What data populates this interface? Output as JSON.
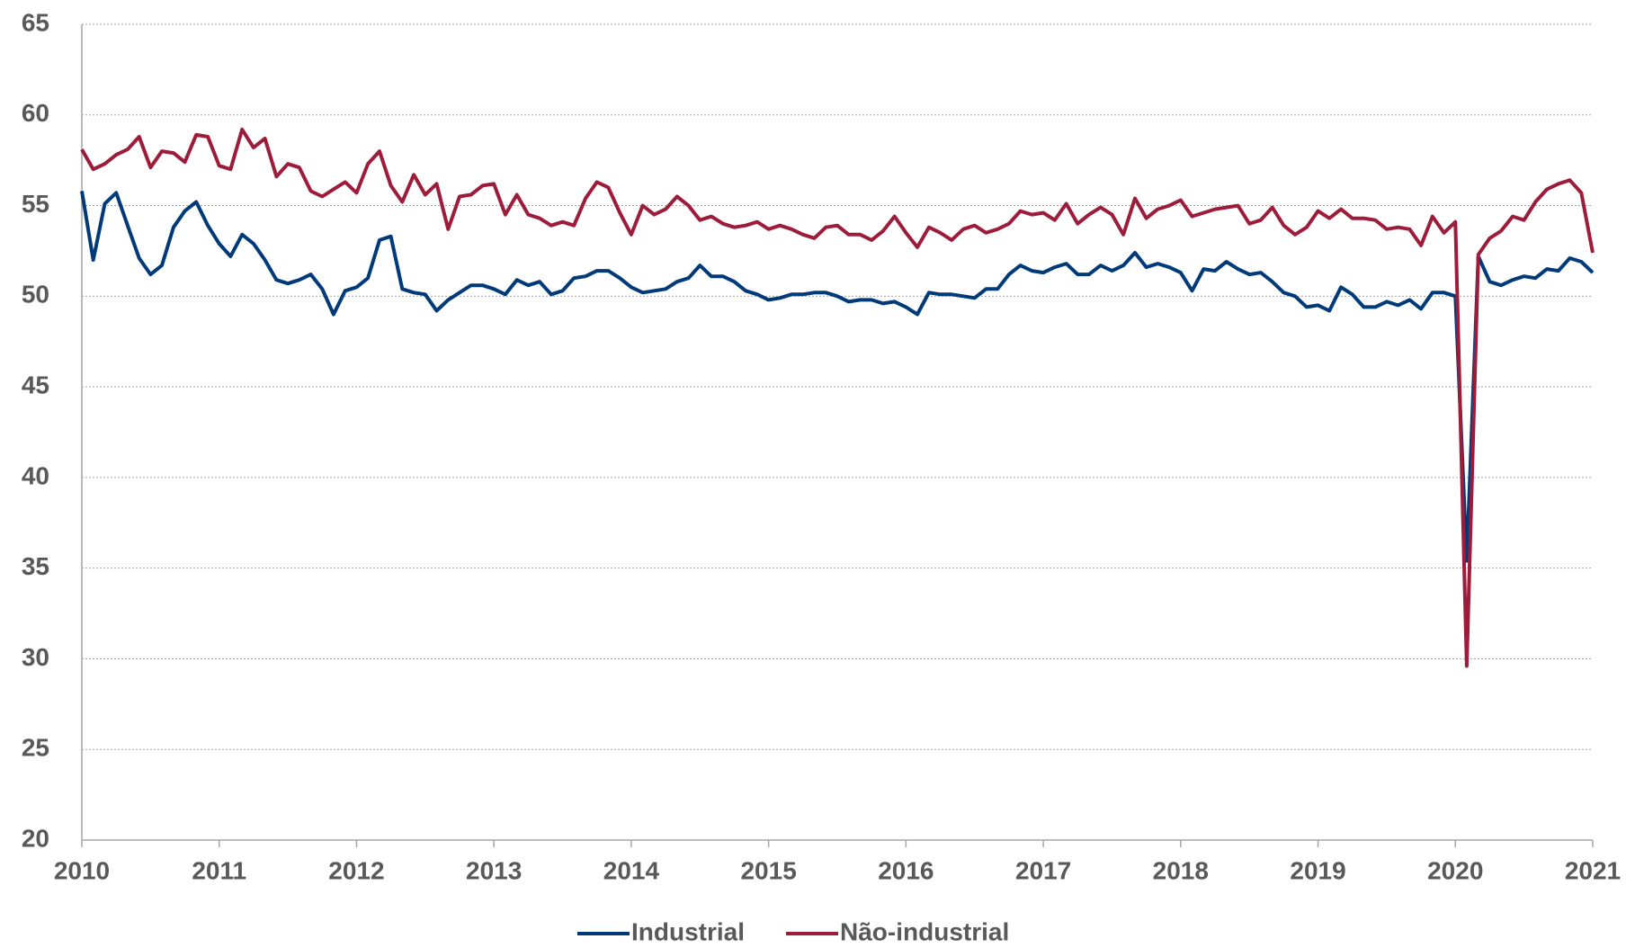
{
  "chart_data": {
    "type": "line",
    "x": [
      2010,
      2010.083,
      2010.167,
      2010.25,
      2010.333,
      2010.417,
      2010.5,
      2010.583,
      2010.667,
      2010.75,
      2010.833,
      2010.917,
      2011,
      2011.083,
      2011.167,
      2011.25,
      2011.333,
      2011.417,
      2011.5,
      2011.583,
      2011.667,
      2011.75,
      2011.833,
      2011.917,
      2012,
      2012.083,
      2012.167,
      2012.25,
      2012.333,
      2012.417,
      2012.5,
      2012.583,
      2012.667,
      2012.75,
      2012.833,
      2012.917,
      2013,
      2013.083,
      2013.167,
      2013.25,
      2013.333,
      2013.417,
      2013.5,
      2013.583,
      2013.667,
      2013.75,
      2013.833,
      2013.917,
      2014,
      2014.083,
      2014.167,
      2014.25,
      2014.333,
      2014.417,
      2014.5,
      2014.583,
      2014.667,
      2014.75,
      2014.833,
      2014.917,
      2015,
      2015.083,
      2015.167,
      2015.25,
      2015.333,
      2015.417,
      2015.5,
      2015.583,
      2015.667,
      2015.75,
      2015.833,
      2015.917,
      2016,
      2016.083,
      2016.167,
      2016.25,
      2016.333,
      2016.417,
      2016.5,
      2016.583,
      2016.667,
      2016.75,
      2016.833,
      2016.917,
      2017,
      2017.083,
      2017.167,
      2017.25,
      2017.333,
      2017.417,
      2017.5,
      2017.583,
      2017.667,
      2017.75,
      2017.833,
      2017.917,
      2018,
      2018.083,
      2018.167,
      2018.25,
      2018.333,
      2018.417,
      2018.5,
      2018.583,
      2018.667,
      2018.75,
      2018.833,
      2018.917,
      2019,
      2019.083,
      2019.167,
      2019.25,
      2019.333,
      2019.417,
      2019.5,
      2019.583,
      2019.667,
      2019.75,
      2019.833,
      2019.917,
      2020,
      2020.083,
      2020.167,
      2020.25,
      2020.333,
      2020.417,
      2020.5,
      2020.583,
      2020.667,
      2020.75,
      2020.833,
      2020.917,
      2021
    ],
    "series": [
      {
        "name": "Industrial",
        "color": "#003a78",
        "values": [
          55.8,
          52,
          55.1,
          55.7,
          53.9,
          52.1,
          51.2,
          51.7,
          53.8,
          54.7,
          55.2,
          53.9,
          52.9,
          52.2,
          53.4,
          52.9,
          52,
          50.9,
          50.7,
          50.9,
          51.2,
          50.4,
          49,
          50.3,
          50.5,
          51,
          53.1,
          53.3,
          50.4,
          50.2,
          50.1,
          49.2,
          49.8,
          50.2,
          50.6,
          50.6,
          50.4,
          50.1,
          50.9,
          50.6,
          50.8,
          50.1,
          50.3,
          51,
          51.1,
          51.4,
          51.4,
          51,
          50.5,
          50.2,
          50.3,
          50.4,
          50.8,
          51,
          51.7,
          51.1,
          51.1,
          50.8,
          50.3,
          50.1,
          49.8,
          49.9,
          50.1,
          50.1,
          50.2,
          50.2,
          50,
          49.7,
          49.8,
          49.8,
          49.6,
          49.7,
          49.4,
          49,
          50.2,
          50.1,
          50.1,
          50,
          49.9,
          50.4,
          50.4,
          51.2,
          51.7,
          51.4,
          51.3,
          51.6,
          51.8,
          51.2,
          51.2,
          51.7,
          51.4,
          51.7,
          52.4,
          51.6,
          51.8,
          51.6,
          51.3,
          50.3,
          51.5,
          51.4,
          51.9,
          51.5,
          51.2,
          51.3,
          50.8,
          50.2,
          50,
          49.4,
          49.5,
          49.2,
          50.5,
          50.1,
          49.4,
          49.4,
          49.7,
          49.5,
          49.8,
          49.3,
          50.2,
          50.2,
          50,
          35.4,
          52.2,
          50.8,
          50.6,
          50.9,
          51.1,
          51,
          51.5,
          51.4,
          52.1,
          51.9,
          51.3
        ]
      },
      {
        "name": "Não-industrial",
        "color": "#9c1c3a",
        "values": [
          58.1,
          57,
          57.3,
          57.8,
          58.1,
          58.8,
          57.1,
          58,
          57.9,
          57.4,
          58.9,
          58.8,
          57.2,
          57,
          59.2,
          58.2,
          58.7,
          56.6,
          57.3,
          57.1,
          55.8,
          55.5,
          55.9,
          56.3,
          55.7,
          57.3,
          58,
          56.1,
          55.2,
          56.7,
          55.6,
          56.2,
          53.7,
          55.5,
          55.6,
          56.1,
          56.2,
          54.5,
          55.6,
          54.5,
          54.3,
          53.9,
          54.1,
          53.9,
          55.4,
          56.3,
          56,
          54.6,
          53.4,
          55,
          54.5,
          54.8,
          55.5,
          55,
          54.2,
          54.4,
          54,
          53.8,
          53.9,
          54.1,
          53.7,
          53.9,
          53.7,
          53.4,
          53.2,
          53.8,
          53.9,
          53.4,
          53.4,
          53.1,
          53.6,
          54.4,
          53.5,
          52.7,
          53.8,
          53.5,
          53.1,
          53.7,
          53.9,
          53.5,
          53.7,
          54,
          54.7,
          54.5,
          54.6,
          54.2,
          55.1,
          54,
          54.5,
          54.9,
          54.5,
          53.4,
          55.4,
          54.3,
          54.8,
          55,
          55.3,
          54.4,
          54.6,
          54.8,
          54.9,
          55,
          54,
          54.2,
          54.9,
          53.9,
          53.4,
          53.8,
          54.7,
          54.3,
          54.8,
          54.3,
          54.3,
          54.2,
          53.7,
          53.8,
          53.7,
          52.8,
          54.4,
          53.5,
          54.1,
          29.6,
          52.3,
          53.2,
          53.6,
          54.4,
          54.2,
          55.2,
          55.9,
          56.2,
          56.4,
          55.7,
          52.4
        ]
      }
    ],
    "xlim": [
      2010,
      2021
    ],
    "xticks": [
      2010,
      2011,
      2012,
      2013,
      2014,
      2015,
      2016,
      2017,
      2018,
      2019,
      2020,
      2021
    ],
    "ylim": [
      20,
      65
    ],
    "yticks": [
      20,
      25,
      30,
      35,
      40,
      45,
      50,
      55,
      60,
      65
    ],
    "grid": true,
    "legend": "bottom"
  }
}
